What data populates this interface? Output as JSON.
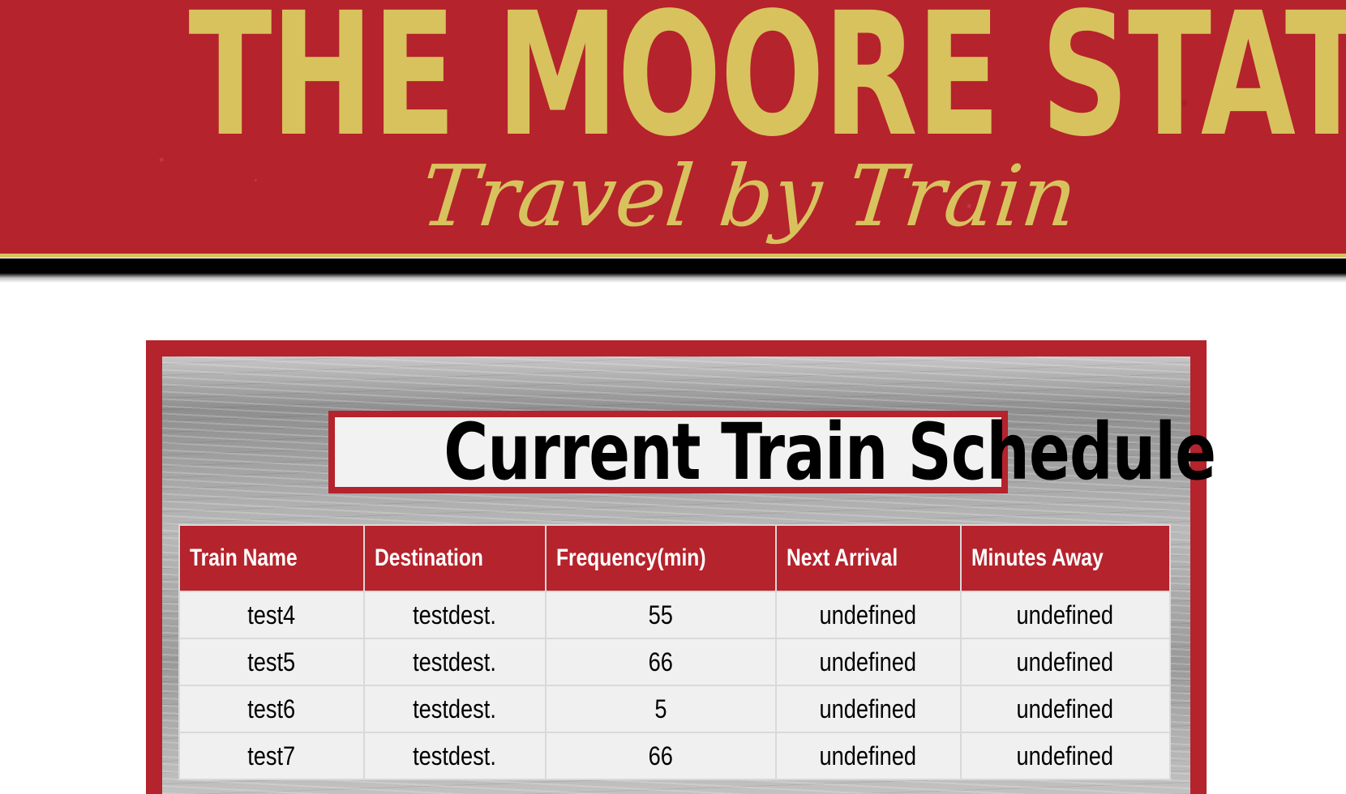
{
  "banner": {
    "title": "THE MOORE STATION",
    "tagline": "Travel by Train"
  },
  "schedule": {
    "title": "Current Train Schedule",
    "columns": [
      "Train Name",
      "Destination",
      "Frequency(min)",
      "Next Arrival",
      "Minutes Away"
    ],
    "rows": [
      [
        "test4",
        "testdest.",
        "55",
        "undefined",
        "undefined"
      ],
      [
        "test5",
        "testdest.",
        "66",
        "undefined",
        "undefined"
      ],
      [
        "test6",
        "testdest.",
        "5",
        "undefined",
        "undefined"
      ],
      [
        "test7",
        "testdest.",
        "66",
        "undefined",
        "undefined"
      ]
    ]
  },
  "colors": {
    "brand_red": "#b5232c",
    "brand_gold": "#d8c25e",
    "row_background": "#f0f0f0"
  }
}
